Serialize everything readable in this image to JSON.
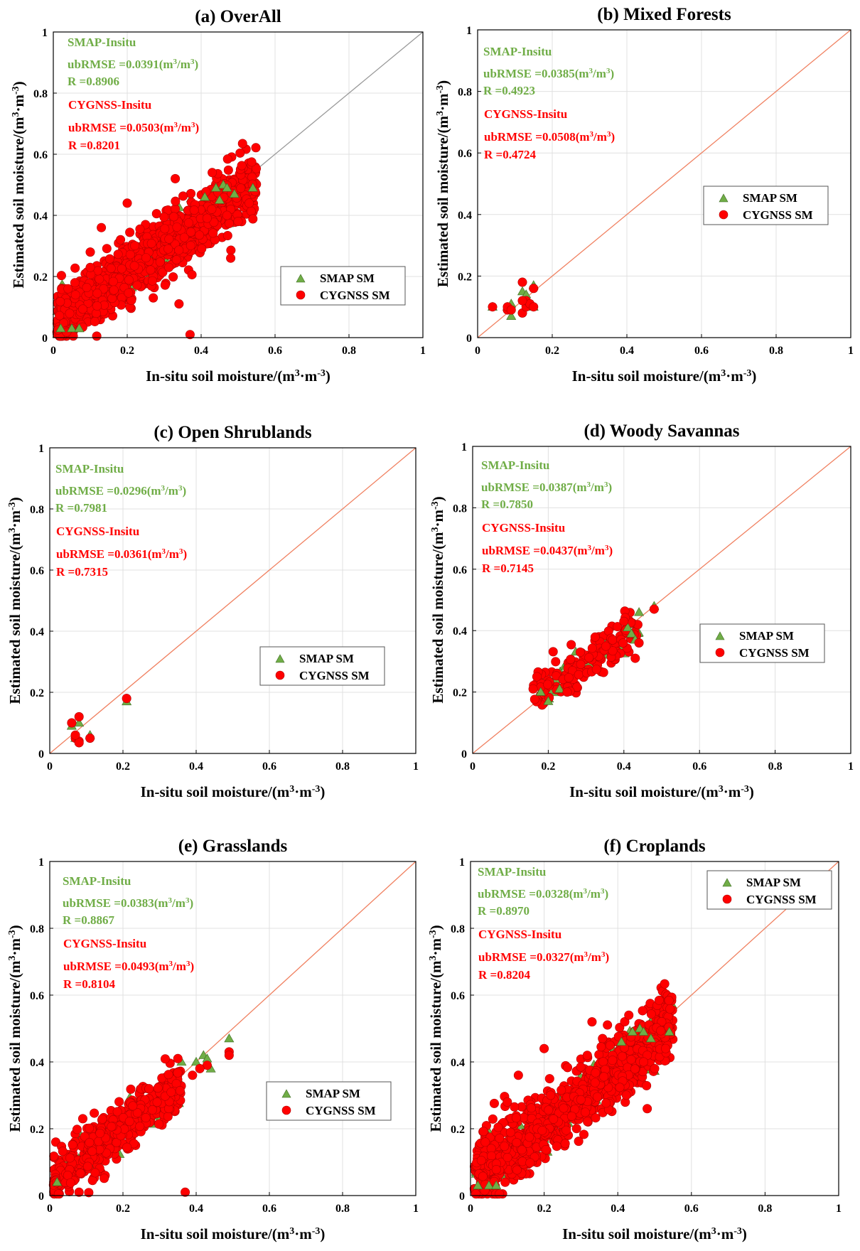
{
  "colors": {
    "smap": "#70ad47",
    "cygnss": "#ff0000",
    "one_to_one_gray": "#999999",
    "one_to_one_orange": "#f08060",
    "grid": "#e0e0e0"
  },
  "legend": {
    "smap": "SMAP SM",
    "cygnss": "CYGNSS SM"
  },
  "ticks": [
    "0",
    "0.2",
    "0.4",
    "0.6",
    "0.8",
    "1"
  ],
  "xlabel": {
    "main": "In-situ soil moisture/(m",
    "sup3": "3",
    "mid": "·m",
    "supm3": "-3",
    "end": ")"
  },
  "ylabel": {
    "main": "Estimated soil moisture/(m",
    "sup3": "3",
    "mid": "·m",
    "supm3": "-3",
    "end": ")"
  },
  "stat_units": {
    "open": "(m",
    "sup": "3",
    "slash": "/m",
    "close": ")"
  },
  "chart_data": [
    {
      "type": "scatter",
      "title": "(a) OverAll",
      "xlim": [
        0,
        1
      ],
      "ylim": [
        0,
        1
      ],
      "grid": true,
      "legend_position": "bottom-right",
      "one_to_one": "gray",
      "smap_stats": {
        "label": "SMAP-Insitu",
        "ubrmse": "ubRMSE =0.0391",
        "r": "R =0.8906"
      },
      "cygnss_stats": {
        "label": "CYGNSS-Insitu",
        "ubrmse": "ubRMSE =0.0503",
        "r": "R =0.8201"
      },
      "cloud": {
        "xmin": 0.01,
        "xmax": 0.55,
        "slope": 0.86,
        "intercept": 0.04,
        "spread": 0.05,
        "n_cygnss": 1100,
        "n_smap": 160
      },
      "smap_points": [
        [
          0.44,
          0.49
        ],
        [
          0.46,
          0.5
        ],
        [
          0.47,
          0.49
        ],
        [
          0.49,
          0.47
        ],
        [
          0.54,
          0.49
        ],
        [
          0.41,
          0.46
        ],
        [
          0.45,
          0.45
        ],
        [
          0.02,
          0.03
        ],
        [
          0.05,
          0.03
        ],
        [
          0.07,
          0.03
        ]
      ],
      "cygnss_points": [
        [
          0.37,
          0.01
        ],
        [
          0.43,
          0.54
        ],
        [
          0.33,
          0.52
        ],
        [
          0.53,
          0.44
        ],
        [
          0.48,
          0.42
        ],
        [
          0.47,
          0.4
        ],
        [
          0.5,
          0.38
        ],
        [
          0.48,
          0.26
        ],
        [
          0.2,
          0.44
        ],
        [
          0.13,
          0.36
        ],
        [
          0.1,
          0.28
        ],
        [
          0.04,
          0.16
        ],
        [
          0.06,
          0.14
        ]
      ]
    },
    {
      "type": "scatter",
      "title": "(b) Mixed Forests",
      "xlim": [
        0,
        1
      ],
      "ylim": [
        0,
        1
      ],
      "grid": true,
      "legend_position": "center-right",
      "one_to_one": "orange",
      "smap_stats": {
        "label": "SMAP-Insitu",
        "ubrmse": "ubRMSE =0.0385",
        "r": "R =0.4923"
      },
      "cygnss_stats": {
        "label": "CYGNSS-Insitu",
        "ubrmse": "ubRMSE =0.0508",
        "r": "R =0.4724"
      },
      "smap_points": [
        [
          0.04,
          0.1
        ],
        [
          0.08,
          0.1
        ],
        [
          0.09,
          0.07
        ],
        [
          0.12,
          0.15
        ],
        [
          0.13,
          0.14
        ],
        [
          0.15,
          0.17
        ],
        [
          0.15,
          0.1
        ],
        [
          0.09,
          0.11
        ]
      ],
      "cygnss_points": [
        [
          0.04,
          0.1
        ],
        [
          0.08,
          0.09
        ],
        [
          0.08,
          0.1
        ],
        [
          0.09,
          0.09
        ],
        [
          0.12,
          0.18
        ],
        [
          0.12,
          0.08
        ],
        [
          0.13,
          0.1
        ],
        [
          0.13,
          0.12
        ],
        [
          0.14,
          0.11
        ],
        [
          0.15,
          0.16
        ],
        [
          0.15,
          0.1
        ],
        [
          0.12,
          0.12
        ]
      ]
    },
    {
      "type": "scatter",
      "title": "(c) Open Shrublands",
      "xlim": [
        0,
        1
      ],
      "ylim": [
        0,
        1
      ],
      "grid": true,
      "legend_position": "center-right",
      "one_to_one": "orange",
      "smap_stats": {
        "label": "SMAP-Insitu",
        "ubrmse": "ubRMSE =0.0296",
        "r": "R =0.7981"
      },
      "cygnss_stats": {
        "label": "CYGNSS-Insitu",
        "ubrmse": "ubRMSE =0.0361",
        "r": "R =0.7315"
      },
      "smap_points": [
        [
          0.06,
          0.09
        ],
        [
          0.08,
          0.1
        ],
        [
          0.11,
          0.06
        ],
        [
          0.21,
          0.17
        ],
        [
          0.07,
          0.05
        ]
      ],
      "cygnss_points": [
        [
          0.06,
          0.1
        ],
        [
          0.08,
          0.12
        ],
        [
          0.07,
          0.05
        ],
        [
          0.08,
          0.04
        ],
        [
          0.08,
          0.035
        ],
        [
          0.07,
          0.06
        ],
        [
          0.11,
          0.05
        ],
        [
          0.21,
          0.18
        ]
      ]
    },
    {
      "type": "scatter",
      "title": "(d) Woody Savannas",
      "xlim": [
        0,
        1
      ],
      "ylim": [
        0,
        1
      ],
      "grid": true,
      "legend_position": "center-right",
      "one_to_one": "orange",
      "smap_stats": {
        "label": "SMAP-Insitu",
        "ubrmse": "ubRMSE =0.0387",
        "r": "R =0.7850"
      },
      "cygnss_stats": {
        "label": "CYGNSS-Insitu",
        "ubrmse": "ubRMSE =0.0437",
        "r": "R =0.7145"
      },
      "cloud": {
        "xmin": 0.16,
        "xmax": 0.44,
        "slope": 0.72,
        "intercept": 0.08,
        "spread": 0.03,
        "n_cygnss": 150,
        "n_smap": 45
      },
      "smap_points": [
        [
          0.48,
          0.48
        ],
        [
          0.44,
          0.46
        ],
        [
          0.41,
          0.41
        ],
        [
          0.42,
          0.39
        ],
        [
          0.43,
          0.37
        ],
        [
          0.2,
          0.17
        ],
        [
          0.18,
          0.2
        ],
        [
          0.23,
          0.21
        ]
      ],
      "cygnss_points": [
        [
          0.48,
          0.47
        ],
        [
          0.4,
          0.43
        ],
        [
          0.44,
          0.36
        ],
        [
          0.43,
          0.31
        ],
        [
          0.17,
          0.25
        ],
        [
          0.16,
          0.21
        ],
        [
          0.25,
          0.2
        ]
      ]
    },
    {
      "type": "scatter",
      "title": "(e) Grasslands",
      "xlim": [
        0,
        1
      ],
      "ylim": [
        0,
        1
      ],
      "grid": true,
      "legend_position": "center-right",
      "one_to_one": "orange",
      "smap_stats": {
        "label": "SMAP-Insitu",
        "ubrmse": "ubRMSE =0.0383",
        "r": "R =0.8867"
      },
      "cygnss_stats": {
        "label": "CYGNSS-Insitu",
        "ubrmse": "ubRMSE =0.0493",
        "r": "R =0.8104"
      },
      "cloud": {
        "xmin": 0.01,
        "xmax": 0.36,
        "slope": 0.82,
        "intercept": 0.04,
        "spread": 0.04,
        "n_cygnss": 500,
        "n_smap": 80
      },
      "smap_points": [
        [
          0.49,
          0.47
        ],
        [
          0.42,
          0.42
        ],
        [
          0.43,
          0.41
        ],
        [
          0.36,
          0.4
        ],
        [
          0.4,
          0.4
        ],
        [
          0.44,
          0.38
        ],
        [
          0.02,
          0.04
        ]
      ],
      "cygnss_points": [
        [
          0.49,
          0.43
        ],
        [
          0.49,
          0.42
        ],
        [
          0.37,
          0.01
        ],
        [
          0.08,
          0.01
        ],
        [
          0.35,
          0.41
        ],
        [
          0.43,
          0.39
        ],
        [
          0.41,
          0.38
        ],
        [
          0.39,
          0.36
        ]
      ]
    },
    {
      "type": "scatter",
      "title": "(f) Croplands",
      "xlim": [
        0,
        1
      ],
      "ylim": [
        0,
        1
      ],
      "grid": true,
      "legend_position": "top-right",
      "one_to_one": "orange",
      "smap_stats": {
        "label": "SMAP-Insitu",
        "ubrmse": "ubRMSE =0.0328",
        "r": "R =0.8970"
      },
      "cygnss_stats": {
        "label": "CYGNSS-Insitu",
        "ubrmse": "ubRMSE =0.0327",
        "r": "R =0.8204"
      },
      "cloud": {
        "xmin": 0.01,
        "xmax": 0.55,
        "slope": 0.86,
        "intercept": 0.04,
        "spread": 0.05,
        "n_cygnss": 1100,
        "n_smap": 160
      },
      "smap_points": [
        [
          0.44,
          0.49
        ],
        [
          0.46,
          0.5
        ],
        [
          0.47,
          0.49
        ],
        [
          0.49,
          0.47
        ],
        [
          0.54,
          0.49
        ],
        [
          0.41,
          0.46
        ],
        [
          0.02,
          0.03
        ],
        [
          0.05,
          0.03
        ],
        [
          0.07,
          0.03
        ]
      ],
      "cygnss_points": [
        [
          0.43,
          0.54
        ],
        [
          0.33,
          0.52
        ],
        [
          0.53,
          0.44
        ],
        [
          0.48,
          0.42
        ],
        [
          0.47,
          0.4
        ],
        [
          0.5,
          0.38
        ],
        [
          0.48,
          0.26
        ],
        [
          0.2,
          0.44
        ],
        [
          0.13,
          0.36
        ],
        [
          0.1,
          0.28
        ],
        [
          0.04,
          0.16
        ]
      ]
    }
  ]
}
